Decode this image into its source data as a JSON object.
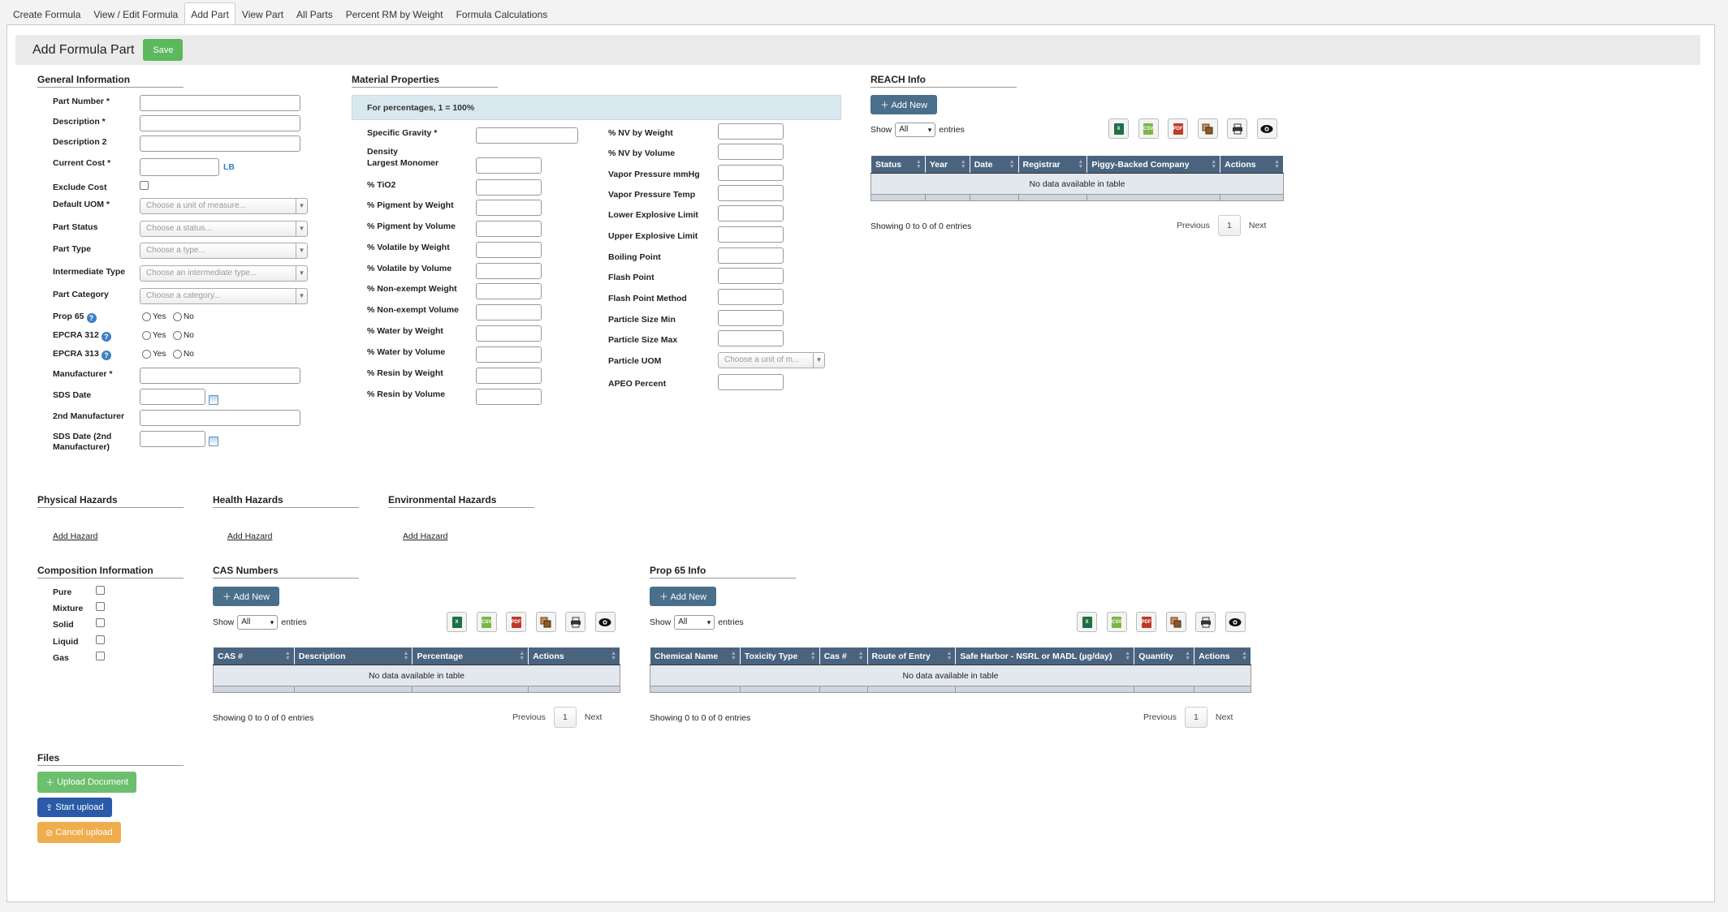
{
  "tabs": [
    "Create Formula",
    "View / Edit Formula",
    "Add Part",
    "View Part",
    "All Parts",
    "Percent RM by Weight",
    "Formula Calculations"
  ],
  "page": {
    "title": "Add Formula Part",
    "save": "Save"
  },
  "general": {
    "heading": "General Information",
    "part_number": "Part Number *",
    "description": "Description *",
    "description2": "Description 2",
    "current_cost": "Current Cost *",
    "cost_unit": "LB",
    "exclude_cost": "Exclude Cost",
    "default_uom": "Default UOM *",
    "default_uom_ph": "Choose a unit of measure...",
    "part_status": "Part Status",
    "part_status_ph": "Choose a status...",
    "part_type": "Part Type",
    "part_type_ph": "Choose a type...",
    "intermediate_type": "Intermediate Type",
    "intermediate_type_ph": "Choose an intermediate type...",
    "part_category": "Part Category",
    "part_category_ph": "Choose a category...",
    "prop65": "Prop 65",
    "epcra312": "EPCRA 312",
    "epcra313": "EPCRA 313",
    "yes": "Yes",
    "no": "No",
    "manufacturer": "Manufacturer *",
    "sds_date": "SDS Date",
    "second_manufacturer": "2nd Manufacturer",
    "sds_date2_a": "SDS Date (2nd",
    "sds_date2_b": "Manufacturer)"
  },
  "material": {
    "heading": "Material Properties",
    "info": "For percentages, 1 = 100%",
    "left": [
      "Specific Gravity *",
      "Density",
      "Largest Monomer",
      "% TiO2",
      "% Pigment by Weight",
      "% Pigment by Volume",
      "% Volatile by Weight",
      "% Volatile by Volume",
      "% Non-exempt Weight",
      "% Non-exempt Volume",
      "% Water by Weight",
      "% Water by Volume",
      "% Resin by Weight",
      "% Resin by Volume"
    ],
    "right": [
      "% NV by Weight",
      "% NV by Volume",
      "Vapor Pressure mmHg",
      "Vapor Pressure Temp",
      "Lower Explosive Limit",
      "Upper Explosive Limit",
      "Boiling Point",
      "Flash Point",
      "Flash Point Method",
      "Particle Size Min",
      "Particle Size Max",
      "Particle UOM",
      "APEO Percent"
    ],
    "particle_uom_ph": "Choose a unit of m..."
  },
  "reach": {
    "heading": "REACH Info",
    "add": "Add New",
    "show": "Show",
    "all": "All",
    "entries": "entries",
    "columns": [
      "Status",
      "Year",
      "Date",
      "Registrar",
      "Piggy-Backed Company",
      "Actions"
    ],
    "empty": "No data available in table",
    "showing": "Showing 0 to 0 of 0 entries",
    "previous": "Previous",
    "page": "1",
    "next": "Next"
  },
  "hazards": {
    "physical": "Physical Hazards",
    "health": "Health Hazards",
    "environmental": "Environmental Hazards",
    "add": "Add Hazard"
  },
  "composition": {
    "heading": "Composition Information",
    "items": [
      "Pure",
      "Mixture",
      "Solid",
      "Liquid",
      "Gas"
    ]
  },
  "cas": {
    "heading": "CAS Numbers",
    "add": "Add New",
    "show": "Show",
    "all": "All",
    "entries": "entries",
    "columns": [
      "CAS #",
      "Description",
      "Percentage",
      "Actions"
    ],
    "empty": "No data available in table",
    "showing": "Showing 0 to 0 of 0 entries",
    "previous": "Previous",
    "page": "1",
    "next": "Next"
  },
  "prop65": {
    "heading": "Prop 65 Info",
    "add": "Add New",
    "show": "Show",
    "all": "All",
    "entries": "entries",
    "columns": [
      "Chemical Name",
      "Toxicity Type",
      "Cas #",
      "Route of Entry",
      "Safe Harbor - NSRL or MADL (µg/day)",
      "Quantity",
      "Actions"
    ],
    "empty": "No data available in table",
    "showing": "Showing 0 to 0 of 0 entries",
    "previous": "Previous",
    "page": "1",
    "next": "Next"
  },
  "files": {
    "heading": "Files",
    "upload": "Upload Document",
    "start": "Start upload",
    "cancel": "Cancel upload"
  },
  "export_icons": [
    "excel-icon",
    "csv-icon",
    "pdf-icon",
    "copy-icon",
    "print-icon",
    "eye-icon"
  ],
  "colors": {
    "green": "#5cb85c",
    "header": "#4a6480",
    "add_btn": "#4a6f8a",
    "start": "#2a5aa8",
    "cancel": "#f0ad4e"
  }
}
